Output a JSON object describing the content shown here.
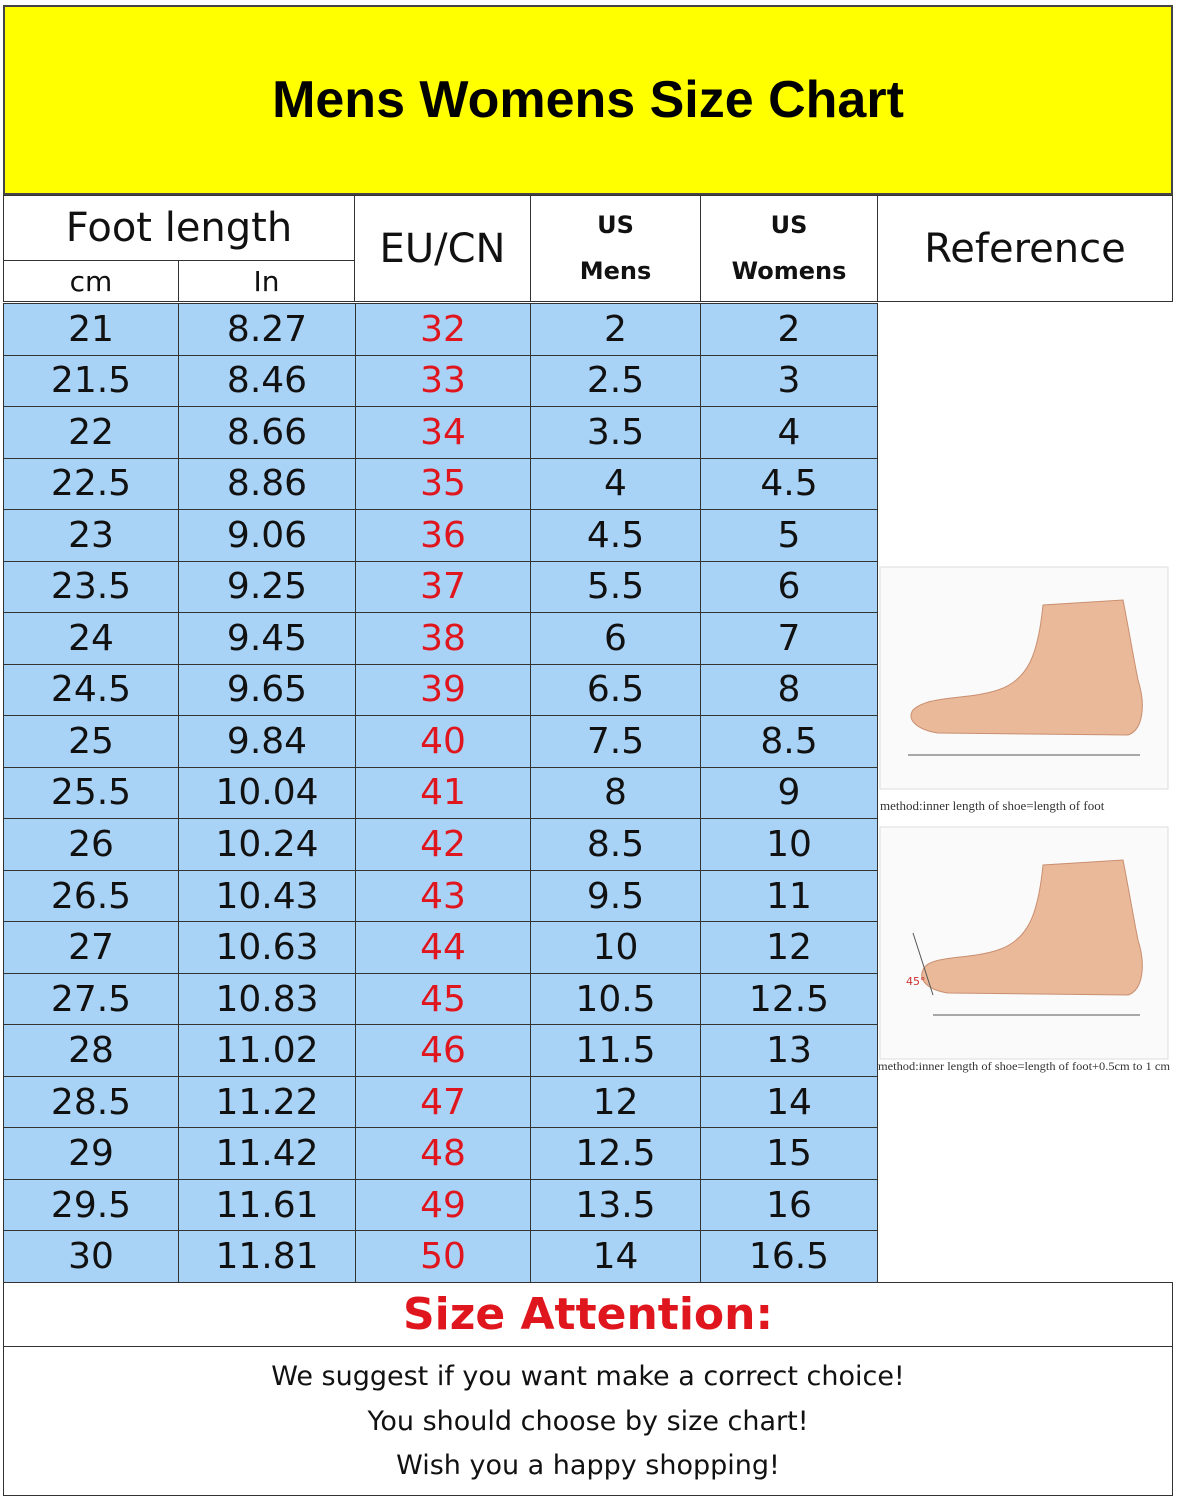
{
  "header": {
    "title": "Mens Womens Size Chart"
  },
  "table": {
    "columns": {
      "foot_length": "Foot length",
      "cm": "cm",
      "in": "In",
      "eu_cn": "EU/CN",
      "us_mens": [
        "US",
        "Mens"
      ],
      "us_womens": [
        "US",
        "Womens"
      ],
      "reference": "Reference"
    },
    "rows": [
      [
        "21",
        "8.27",
        "32",
        "2",
        "2"
      ],
      [
        "21.5",
        "8.46",
        "33",
        "2.5",
        "3"
      ],
      [
        "22",
        "8.66",
        "34",
        "3.5",
        "4"
      ],
      [
        "22.5",
        "8.86",
        "35",
        "4",
        "4.5"
      ],
      [
        "23",
        "9.06",
        "36",
        "4.5",
        "5"
      ],
      [
        "23.5",
        "9.25",
        "37",
        "5.5",
        "6"
      ],
      [
        "24",
        "9.45",
        "38",
        "6",
        "7"
      ],
      [
        "24.5",
        "9.65",
        "39",
        "6.5",
        "8"
      ],
      [
        "25",
        "9.84",
        "40",
        "7.5",
        "8.5"
      ],
      [
        "25.5",
        "10.04",
        "41",
        "8",
        "9"
      ],
      [
        "26",
        "10.24",
        "42",
        "8.5",
        "10"
      ],
      [
        "26.5",
        "10.43",
        "43",
        "9.5",
        "11"
      ],
      [
        "27",
        "10.63",
        "44",
        "10",
        "12"
      ],
      [
        "27.5",
        "10.83",
        "45",
        "10.5",
        "12.5"
      ],
      [
        "28",
        "11.02",
        "46",
        "11.5",
        "13"
      ],
      [
        "28.5",
        "11.22",
        "47",
        "12",
        "14"
      ],
      [
        "29",
        "11.42",
        "48",
        "12.5",
        "15"
      ],
      [
        "29.5",
        "11.61",
        "49",
        "13.5",
        "16"
      ],
      [
        "30",
        "11.81",
        "50",
        "14",
        "16.5"
      ]
    ]
  },
  "reference": {
    "captions": [
      "method:inner length of shoe=length of foot",
      "method:inner length of shoe=length of foot+0.5cm to 1 cm"
    ],
    "angle": "45°"
  },
  "attention": {
    "title": "Size Attention:",
    "lines": [
      "We suggest if you want make a correct choice!",
      "You should choose by size chart!",
      "Wish you a happy shopping!"
    ]
  }
}
